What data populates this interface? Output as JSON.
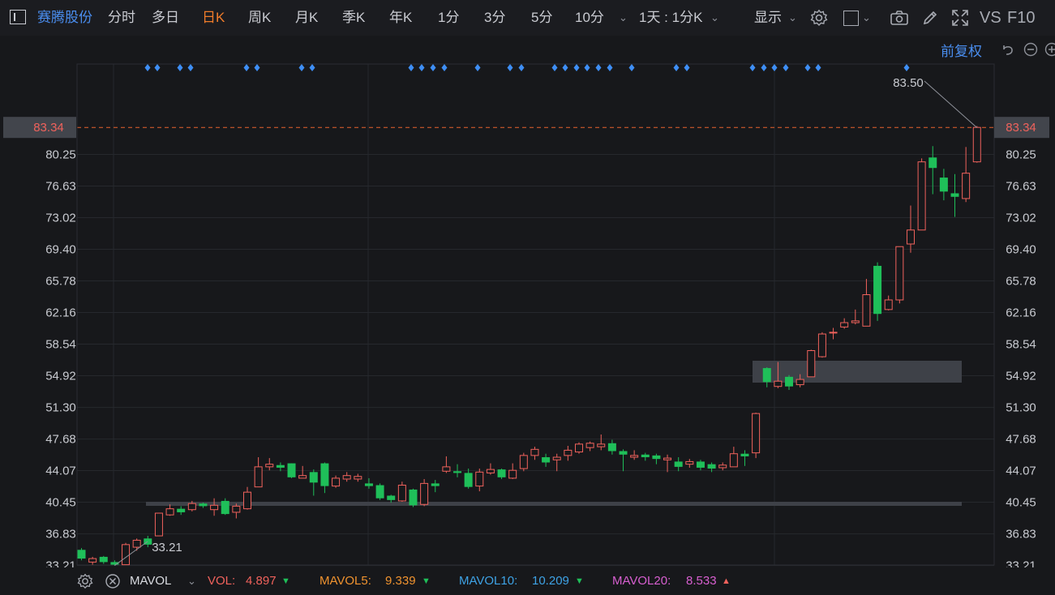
{
  "toolbar": {
    "stock_name": "赛腾股份",
    "periods": [
      "分时",
      "多日",
      "日K",
      "周K",
      "月K",
      "季K",
      "年K",
      "1分",
      "3分",
      "5分",
      "10分"
    ],
    "active_period": "日K",
    "interval_select": "1天 : 1分K",
    "display_label": "显示",
    "vs_label": "VS",
    "f10_label": "F10"
  },
  "subbar": {
    "adjust_label": "前复权"
  },
  "price_axis": {
    "ticks": [
      "80.25",
      "76.63",
      "73.02",
      "69.40",
      "65.78",
      "62.16",
      "58.54",
      "54.92",
      "51.30",
      "47.68",
      "44.07",
      "40.45",
      "36.83",
      "33.21"
    ],
    "current_price": "83.34"
  },
  "annotations": {
    "high_label": "83.50",
    "low_label": "33.21"
  },
  "chart_data": {
    "type": "candlestick",
    "ylim": [
      31.5,
      85.0
    ],
    "current_price": 83.34,
    "high": 83.5,
    "low": 33.21,
    "candles": [
      {
        "o": 35.0,
        "c": 34.0,
        "h": 35.2,
        "l": 33.8
      },
      {
        "o": 33.6,
        "c": 34.0,
        "h": 34.2,
        "l": 33.3
      },
      {
        "o": 34.2,
        "c": 33.6,
        "h": 34.3,
        "l": 33.4
      },
      {
        "o": 33.6,
        "c": 33.3,
        "h": 33.8,
        "l": 33.21
      },
      {
        "o": 33.3,
        "c": 35.6,
        "h": 35.8,
        "l": 33.3
      },
      {
        "o": 35.3,
        "c": 36.1,
        "h": 36.3,
        "l": 34.9
      },
      {
        "o": 36.3,
        "c": 35.6,
        "h": 36.6,
        "l": 35.3
      },
      {
        "o": 36.6,
        "c": 39.2,
        "h": 39.2,
        "l": 36.6
      },
      {
        "o": 39.0,
        "c": 39.7,
        "h": 40.2,
        "l": 38.9
      },
      {
        "o": 39.7,
        "c": 39.3,
        "h": 40.0,
        "l": 39.0
      },
      {
        "o": 39.6,
        "c": 40.3,
        "h": 40.6,
        "l": 39.4
      },
      {
        "o": 40.3,
        "c": 40.0,
        "h": 40.4,
        "l": 39.8
      },
      {
        "o": 39.6,
        "c": 40.1,
        "h": 40.9,
        "l": 38.9
      },
      {
        "o": 40.6,
        "c": 39.1,
        "h": 40.9,
        "l": 39.0
      },
      {
        "o": 39.3,
        "c": 40.0,
        "h": 40.3,
        "l": 38.6
      },
      {
        "o": 39.7,
        "c": 41.6,
        "h": 42.2,
        "l": 39.6
      },
      {
        "o": 42.2,
        "c": 44.5,
        "h": 45.6,
        "l": 42.2
      },
      {
        "o": 44.5,
        "c": 44.8,
        "h": 45.5,
        "l": 44.1
      },
      {
        "o": 44.7,
        "c": 44.4,
        "h": 45.0,
        "l": 44.0
      },
      {
        "o": 44.9,
        "c": 43.3,
        "h": 44.9,
        "l": 43.2
      },
      {
        "o": 43.2,
        "c": 43.5,
        "h": 44.6,
        "l": 43.2
      },
      {
        "o": 43.9,
        "c": 42.7,
        "h": 44.2,
        "l": 41.2
      },
      {
        "o": 44.9,
        "c": 42.3,
        "h": 45.0,
        "l": 41.5
      },
      {
        "o": 42.3,
        "c": 43.2,
        "h": 43.5,
        "l": 42.1
      },
      {
        "o": 43.1,
        "c": 43.5,
        "h": 43.9,
        "l": 42.8
      },
      {
        "o": 43.1,
        "c": 43.4,
        "h": 43.7,
        "l": 42.8
      },
      {
        "o": 42.6,
        "c": 42.3,
        "h": 43.2,
        "l": 42.0
      },
      {
        "o": 42.4,
        "c": 40.9,
        "h": 42.6,
        "l": 40.7
      },
      {
        "o": 41.2,
        "c": 40.7,
        "h": 41.3,
        "l": 40.4
      },
      {
        "o": 40.6,
        "c": 42.4,
        "h": 42.8,
        "l": 40.5
      },
      {
        "o": 41.9,
        "c": 40.1,
        "h": 42.0,
        "l": 39.9
      },
      {
        "o": 40.2,
        "c": 42.6,
        "h": 43.1,
        "l": 40.0
      },
      {
        "o": 42.6,
        "c": 42.3,
        "h": 43.0,
        "l": 41.6
      },
      {
        "o": 44.0,
        "c": 44.5,
        "h": 45.7,
        "l": 43.8
      },
      {
        "o": 44.0,
        "c": 43.8,
        "h": 44.8,
        "l": 43.3
      },
      {
        "o": 43.8,
        "c": 42.2,
        "h": 44.3,
        "l": 42.0
      },
      {
        "o": 42.3,
        "c": 43.9,
        "h": 44.3,
        "l": 41.7
      },
      {
        "o": 43.8,
        "c": 44.2,
        "h": 44.9,
        "l": 43.6
      },
      {
        "o": 44.2,
        "c": 43.3,
        "h": 44.3,
        "l": 43.1
      },
      {
        "o": 43.2,
        "c": 44.1,
        "h": 44.9,
        "l": 43.1
      },
      {
        "o": 44.3,
        "c": 45.8,
        "h": 46.1,
        "l": 44.0
      },
      {
        "o": 45.8,
        "c": 46.5,
        "h": 46.8,
        "l": 45.3
      },
      {
        "o": 45.6,
        "c": 45.0,
        "h": 46.0,
        "l": 44.5
      },
      {
        "o": 45.3,
        "c": 45.6,
        "h": 46.0,
        "l": 44.0
      },
      {
        "o": 45.8,
        "c": 46.4,
        "h": 46.9,
        "l": 45.2
      },
      {
        "o": 46.2,
        "c": 47.1,
        "h": 47.3,
        "l": 46.0
      },
      {
        "o": 46.7,
        "c": 47.2,
        "h": 47.4,
        "l": 46.3
      },
      {
        "o": 46.8,
        "c": 47.1,
        "h": 48.2,
        "l": 46.4
      },
      {
        "o": 47.2,
        "c": 46.3,
        "h": 47.6,
        "l": 45.9
      },
      {
        "o": 46.3,
        "c": 45.9,
        "h": 46.5,
        "l": 44.0
      },
      {
        "o": 45.6,
        "c": 45.8,
        "h": 46.4,
        "l": 45.3
      },
      {
        "o": 45.9,
        "c": 45.6,
        "h": 46.1,
        "l": 45.2
      },
      {
        "o": 45.8,
        "c": 45.4,
        "h": 46.0,
        "l": 44.8
      },
      {
        "o": 45.3,
        "c": 45.5,
        "h": 45.9,
        "l": 43.9
      },
      {
        "o": 45.1,
        "c": 44.5,
        "h": 45.6,
        "l": 44.0
      },
      {
        "o": 44.8,
        "c": 45.1,
        "h": 45.4,
        "l": 44.4
      },
      {
        "o": 45.1,
        "c": 44.4,
        "h": 45.3,
        "l": 44.1
      },
      {
        "o": 44.8,
        "c": 44.3,
        "h": 45.0,
        "l": 43.9
      },
      {
        "o": 44.4,
        "c": 44.7,
        "h": 45.0,
        "l": 44.1
      },
      {
        "o": 44.5,
        "c": 46.0,
        "h": 46.8,
        "l": 44.5
      },
      {
        "o": 46.0,
        "c": 45.7,
        "h": 46.4,
        "l": 44.6
      },
      {
        "o": 46.1,
        "c": 50.6,
        "h": 50.7,
        "l": 45.5
      },
      {
        "o": 55.8,
        "c": 54.2,
        "h": 55.9,
        "l": 53.6
      },
      {
        "o": 53.7,
        "c": 54.3,
        "h": 56.5,
        "l": 53.5
      },
      {
        "o": 54.8,
        "c": 53.7,
        "h": 55.0,
        "l": 53.3
      },
      {
        "o": 53.9,
        "c": 54.5,
        "h": 55.1,
        "l": 53.6
      },
      {
        "o": 54.8,
        "c": 57.8,
        "h": 57.9,
        "l": 54.8
      },
      {
        "o": 57.1,
        "c": 59.7,
        "h": 59.9,
        "l": 57.0
      },
      {
        "o": 59.9,
        "c": 59.9,
        "h": 60.4,
        "l": 59.1
      },
      {
        "o": 60.5,
        "c": 61.0,
        "h": 61.5,
        "l": 60.3
      },
      {
        "o": 61.0,
        "c": 61.2,
        "h": 62.5,
        "l": 60.8
      },
      {
        "o": 60.6,
        "c": 64.2,
        "h": 66.0,
        "l": 60.6
      },
      {
        "o": 67.5,
        "c": 62.0,
        "h": 67.9,
        "l": 61.2
      },
      {
        "o": 62.5,
        "c": 63.6,
        "h": 64.1,
        "l": 62.4
      },
      {
        "o": 63.6,
        "c": 69.7,
        "h": 69.7,
        "l": 63.2
      },
      {
        "o": 70.0,
        "c": 71.6,
        "h": 74.4,
        "l": 69.0
      },
      {
        "o": 71.6,
        "c": 79.4,
        "h": 79.8,
        "l": 71.6
      },
      {
        "o": 79.9,
        "c": 78.7,
        "h": 81.2,
        "l": 75.7
      },
      {
        "o": 77.6,
        "c": 76.0,
        "h": 78.6,
        "l": 75.0
      },
      {
        "o": 75.8,
        "c": 75.4,
        "h": 78.0,
        "l": 73.1
      },
      {
        "o": 75.2,
        "c": 78.1,
        "h": 81.1,
        "l": 74.8
      },
      {
        "o": 79.4,
        "c": 83.34,
        "h": 83.5,
        "l": 79.3
      }
    ],
    "markers": [
      182,
      194,
      222,
      235,
      304,
      317,
      372,
      385,
      507,
      520,
      534,
      548,
      589,
      629,
      643,
      684,
      697,
      711,
      724,
      738,
      752,
      779,
      834,
      847,
      928,
      942,
      955,
      969,
      996,
      1009,
      1118
    ]
  },
  "indicators": {
    "name": "MAVOL",
    "items": [
      {
        "label": "VOL:",
        "value": "4.897",
        "trend": "▼",
        "color": "#f0625c",
        "trend_color": "#1fbf59"
      },
      {
        "label": "MAVOL5:",
        "value": "9.339",
        "trend": "▼",
        "color": "#f0932f",
        "trend_color": "#1fbf59"
      },
      {
        "label": "MAVOL10:",
        "value": "10.209",
        "trend": "▼",
        "color": "#3ea3e6",
        "trend_color": "#1fbf59"
      },
      {
        "label": "MAVOL20:",
        "value": "8.533",
        "trend": "▲",
        "color": "#d85fd0",
        "trend_color": "#f0625c"
      }
    ]
  },
  "colors": {
    "up": "#f0625c",
    "down": "#1fbf59",
    "accent": "#4a8ef0",
    "active": "#f07c2a"
  }
}
